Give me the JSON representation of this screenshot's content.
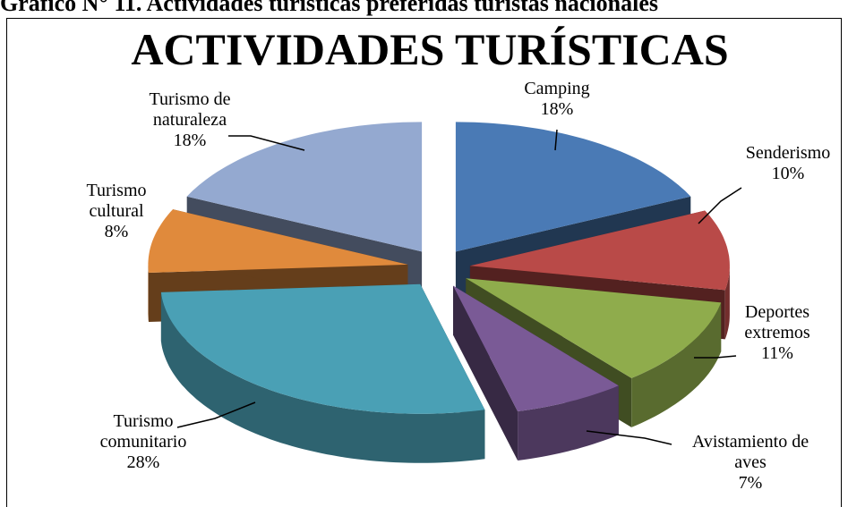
{
  "chart_data": {
    "type": "pie",
    "caption": "Gráfico N° 11. Actividades turísticas preferidas turistas nacionales",
    "title": "ACTIVIDADES  TURÍSTICAS",
    "categories": [
      "Camping",
      "Senderismo",
      "Deportes extremos",
      "Avistamiento de aves",
      "Turismo comunitario",
      "Turismo cultural",
      "Turismo de naturaleza"
    ],
    "values": [
      18,
      10,
      11,
      7,
      28,
      8,
      18
    ],
    "value_labels": [
      "18%",
      "10%",
      "11%",
      "7%",
      "28%",
      "8%",
      "18%"
    ],
    "colors": [
      "#4a7ab5",
      "#b94a48",
      "#8fac4c",
      "#7a5a96",
      "#4aa0b5",
      "#e08a3c",
      "#94a9d0"
    ]
  }
}
